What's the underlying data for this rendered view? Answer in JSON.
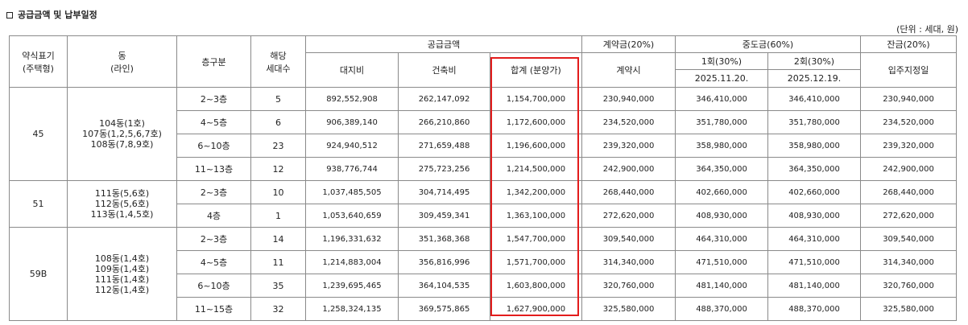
{
  "section_title": "공급금액 및 납부일정",
  "unit_note": "(단위 : 세대, 원)",
  "headers": {
    "type": "약식표기\n(주택형)",
    "dong": "동\n(라인)",
    "floor": "층구분",
    "units": "해당\n세대수",
    "supply": "공급금액",
    "land": "대지비",
    "building": "건축비",
    "total": "합계 (분양가)",
    "contract": "계약금(20%)",
    "contract_sub": "계약시",
    "middle": "중도금(60%)",
    "middle1": "1회(30%)",
    "middle1_date": "2025.11.20.",
    "middle2": "2회(30%)",
    "middle2_date": "2025.12.19.",
    "balance": "잔금(20%)",
    "balance_sub": "입주지정일"
  },
  "groups": [
    {
      "type": "45",
      "dong": "104동(1호)\n107동(1,2,5,6,7호)\n108동(7,8,9호)",
      "rows": [
        {
          "floor": "2~3층",
          "units": "5",
          "land": "892,552,908",
          "building": "262,147,092",
          "total": "1,154,700,000",
          "contract": "230,940,000",
          "m1": "346,410,000",
          "m2": "346,410,000",
          "balance": "230,940,000"
        },
        {
          "floor": "4~5층",
          "units": "6",
          "land": "906,389,140",
          "building": "266,210,860",
          "total": "1,172,600,000",
          "contract": "234,520,000",
          "m1": "351,780,000",
          "m2": "351,780,000",
          "balance": "234,520,000"
        },
        {
          "floor": "6~10층",
          "units": "23",
          "land": "924,940,512",
          "building": "271,659,488",
          "total": "1,196,600,000",
          "contract": "239,320,000",
          "m1": "358,980,000",
          "m2": "358,980,000",
          "balance": "239,320,000"
        },
        {
          "floor": "11~13층",
          "units": "12",
          "land": "938,776,744",
          "building": "275,723,256",
          "total": "1,214,500,000",
          "contract": "242,900,000",
          "m1": "364,350,000",
          "m2": "364,350,000",
          "balance": "242,900,000"
        }
      ]
    },
    {
      "type": "51",
      "dong": "111동(5,6호)\n112동(5,6호)\n113동(1,4,5호)",
      "rows": [
        {
          "floor": "2~3층",
          "units": "10",
          "land": "1,037,485,505",
          "building": "304,714,495",
          "total": "1,342,200,000",
          "contract": "268,440,000",
          "m1": "402,660,000",
          "m2": "402,660,000",
          "balance": "268,440,000"
        },
        {
          "floor": "4층",
          "units": "1",
          "land": "1,053,640,659",
          "building": "309,459,341",
          "total": "1,363,100,000",
          "contract": "272,620,000",
          "m1": "408,930,000",
          "m2": "408,930,000",
          "balance": "272,620,000"
        }
      ]
    },
    {
      "type": "59B",
      "dong": "108동(1,4호)\n109동(1,4호)\n111동(1,4호)\n112동(1,4호)",
      "rows": [
        {
          "floor": "2~3층",
          "units": "14",
          "land": "1,196,331,632",
          "building": "351,368,368",
          "total": "1,547,700,000",
          "contract": "309,540,000",
          "m1": "464,310,000",
          "m2": "464,310,000",
          "balance": "309,540,000"
        },
        {
          "floor": "4~5층",
          "units": "11",
          "land": "1,214,883,004",
          "building": "356,816,996",
          "total": "1,571,700,000",
          "contract": "314,340,000",
          "m1": "471,510,000",
          "m2": "471,510,000",
          "balance": "314,340,000"
        },
        {
          "floor": "6~10층",
          "units": "35",
          "land": "1,239,695,465",
          "building": "364,104,535",
          "total": "1,603,800,000",
          "contract": "320,760,000",
          "m1": "481,140,000",
          "m2": "481,140,000",
          "balance": "320,760,000"
        },
        {
          "floor": "11~15층",
          "units": "32",
          "land": "1,258,324,135",
          "building": "369,575,865",
          "total": "1,627,900,000",
          "contract": "325,580,000",
          "m1": "488,370,000",
          "m2": "488,370,000",
          "balance": "325,580,000"
        }
      ]
    }
  ],
  "highlight_color": "#e31c1c"
}
